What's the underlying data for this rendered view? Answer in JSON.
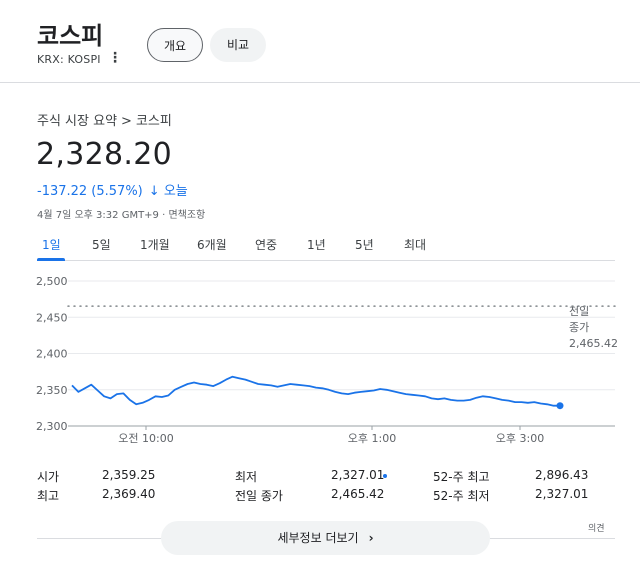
{
  "header": {
    "title": "코스피",
    "subtitle": "KRX: KOSPI",
    "more_icon": "more-vert-icon",
    "tabs": [
      "개요",
      "비교"
    ]
  },
  "breadcrumb": {
    "parent": "주식 시장 요약",
    "separator": ">",
    "current": "코스피"
  },
  "quote": {
    "price": "2,328.20",
    "change": "-137.22 (5.57%)",
    "change_arrow": "↓",
    "change_period": "오늘",
    "timestamp": "4월 7일 오후 3:32 GMT+9 · 면책조항",
    "change_color": "#1a73e8"
  },
  "range_tabs": {
    "items": [
      "1일",
      "5일",
      "1개월",
      "6개월",
      "연중",
      "1년",
      "5년",
      "최대"
    ],
    "selected": "1일"
  },
  "chart_data": {
    "type": "line",
    "y_ticks": [
      "2,500",
      "2,450",
      "2,400",
      "2,350",
      "2,300"
    ],
    "ylim": [
      2300,
      2500
    ],
    "x_ticks": [
      "오전 10:00",
      "오후 1:00",
      "오후 3:00"
    ],
    "previous_close": {
      "label_line1": "전일",
      "label_line2": "종가",
      "value": 2465.42,
      "value_label": "2,465.42"
    },
    "series": [
      {
        "values": [
          2356,
          2347,
          2352,
          2357,
          2349,
          2341,
          2338,
          2344,
          2345,
          2336,
          2330,
          2332,
          2336,
          2341,
          2340,
          2342,
          2350,
          2354,
          2358,
          2360,
          2358,
          2357,
          2355,
          2359,
          2364,
          2368,
          2366,
          2364,
          2361,
          2358,
          2357,
          2356,
          2354,
          2356,
          2358,
          2357,
          2356,
          2355,
          2353,
          2352,
          2350,
          2347,
          2345,
          2344,
          2346,
          2347,
          2348,
          2349,
          2351,
          2350,
          2348,
          2346,
          2344,
          2343,
          2342,
          2341,
          2338,
          2337,
          2338,
          2336,
          2335,
          2335,
          2336,
          2339,
          2341,
          2340,
          2338,
          2336,
          2335,
          2333,
          2333,
          2332,
          2333,
          2331,
          2330,
          2328,
          2328
        ],
        "color": "#1a73e8"
      }
    ],
    "grid": true,
    "legend": "none"
  },
  "stats": [
    {
      "label": "시가",
      "value": "2,359.25"
    },
    {
      "label": "최고",
      "value": "2,369.40"
    },
    {
      "label": "최저",
      "value": "2,327.01"
    },
    {
      "label": "전일 종가",
      "value": "2,465.42"
    },
    {
      "label": "52-주 최고",
      "value": "2,896.43"
    },
    {
      "label": "52-주 최저",
      "value": "2,327.01"
    }
  ],
  "footer": {
    "more_label": "세부정보 더보기",
    "chevron_icon": "chevron-right-icon",
    "feedback": "의견"
  }
}
